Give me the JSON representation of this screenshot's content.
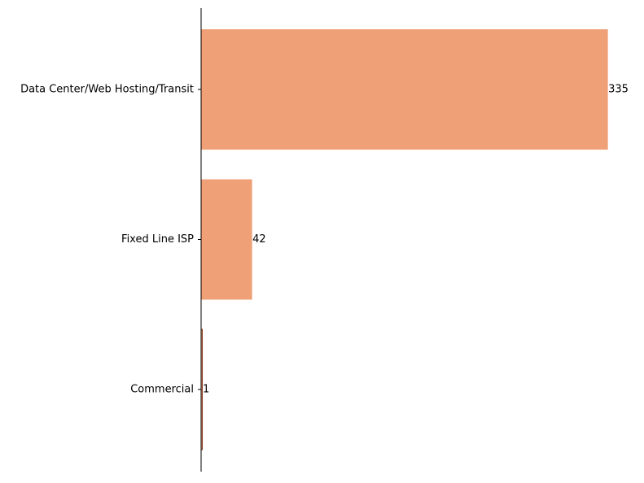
{
  "chart_data": {
    "type": "bar",
    "orientation": "horizontal",
    "title": "",
    "xlabel": "",
    "ylabel": "",
    "categories": [
      "Data Center/Web Hosting/Transit",
      "Fixed Line ISP",
      "Commercial"
    ],
    "values": [
      335,
      42,
      1
    ],
    "data_labels": [
      "335",
      "42",
      "1"
    ],
    "xlim": [
      0,
      352
    ],
    "x_axis_visible": false,
    "grid": false,
    "legend": "none",
    "bar_color": "#EFA077",
    "thin_bar_edge_color": "#8B3A1A"
  }
}
